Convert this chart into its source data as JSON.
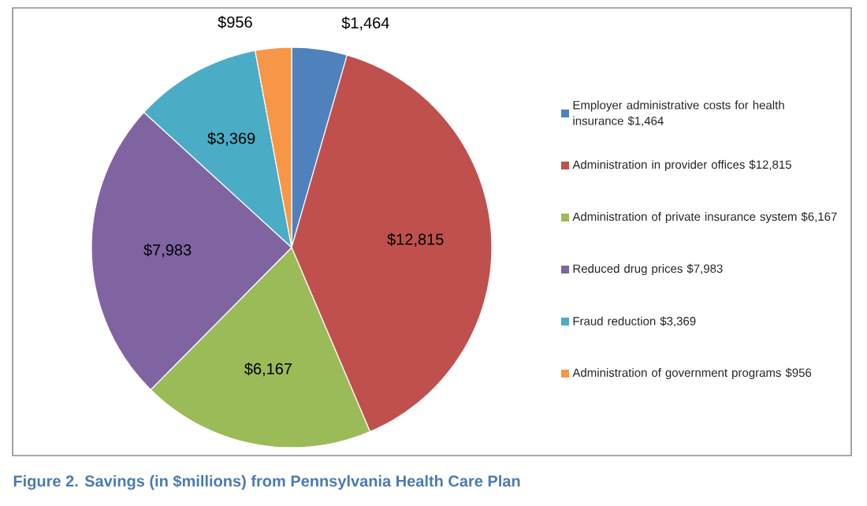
{
  "chart_data": {
    "type": "pie",
    "title": "Figure 2.  Savings (in $millions) from Pennsylvania Health Care Plan",
    "categories": [
      "Employer administrative costs for health insurance $1,464",
      "Administration in provider offices $12,815",
      "Administration of private insurance system $6,167",
      "Reduced drug prices $7,983",
      "Fraud reduction $3,369",
      "Administration of government programs $956"
    ],
    "values": [
      1464,
      12815,
      6167,
      7983,
      3369,
      956
    ],
    "value_labels": [
      "$1,464",
      "$12,815",
      "$6,167",
      "$7,983",
      "$3,369",
      "$956"
    ],
    "colors": [
      "#4f81bd",
      "#c0504d",
      "#9bbb59",
      "#8064a2",
      "#4bacc6",
      "#f79646"
    ],
    "legend": "right"
  }
}
